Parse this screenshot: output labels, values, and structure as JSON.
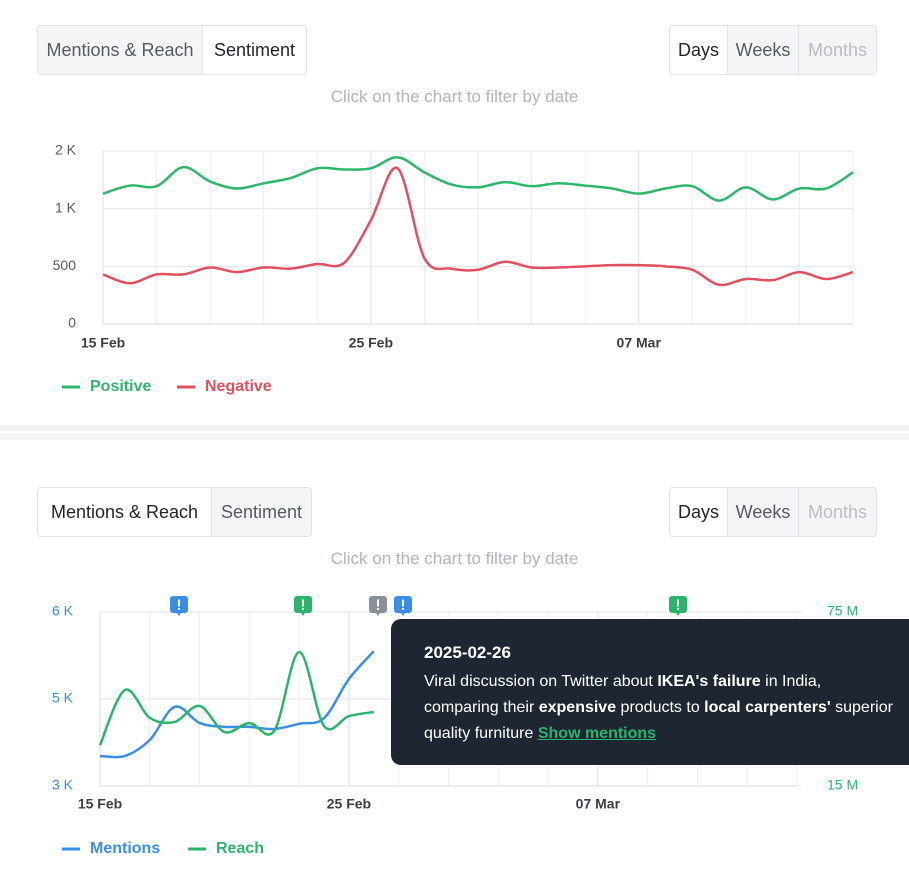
{
  "panels": [
    {
      "tabs": [
        "Mentions & Reach",
        "Sentiment"
      ],
      "active_tab": 1,
      "ranges": [
        "Days",
        "Weeks",
        "Months"
      ],
      "active_range": 0,
      "disabled_range": 2,
      "hint": "Click on the chart to filter by date"
    },
    {
      "tabs": [
        "Mentions & Reach",
        "Sentiment"
      ],
      "active_tab": 0,
      "ranges": [
        "Days",
        "Weeks",
        "Months"
      ],
      "active_range": 0,
      "disabled_range": 2,
      "hint": "Click on the chart to filter by date"
    }
  ],
  "chart_data": [
    {
      "type": "line",
      "categories": [
        "15 Feb",
        null,
        null,
        null,
        null,
        null,
        null,
        null,
        null,
        null,
        "25 Feb",
        null,
        null,
        null,
        null,
        null,
        null,
        null,
        null,
        null,
        "07 Mar",
        null,
        null,
        null,
        null,
        null,
        null,
        null,
        null
      ],
      "ylim": [
        0,
        2000
      ],
      "yticks": [
        0,
        500,
        {
          "value": 1000,
          "label": "1 K"
        },
        {
          "value": 2000,
          "label": "2 K"
        }
      ],
      "grid": true,
      "legend": "bottom-left",
      "series": [
        {
          "name": "Positive",
          "color": "#2db768",
          "values": [
            1260,
            1400,
            1390,
            1720,
            1470,
            1350,
            1440,
            1530,
            1700,
            1680,
            1700,
            1890,
            1630,
            1420,
            1370,
            1460,
            1390,
            1440,
            1400,
            1350,
            1260,
            1350,
            1390,
            1140,
            1370,
            1160,
            1350,
            1350,
            1630
          ]
        },
        {
          "name": "Negative",
          "color": "#e0505e",
          "values": [
            430,
            353,
            430,
            430,
            490,
            450,
            490,
            480,
            520,
            530,
            900,
            1700,
            570,
            480,
            470,
            540,
            490,
            490,
            500,
            510,
            510,
            500,
            470,
            340,
            390,
            380,
            450,
            390,
            450
          ]
        }
      ]
    },
    {
      "type": "line",
      "categories": [
        "15 Feb",
        null,
        null,
        null,
        null,
        null,
        null,
        null,
        null,
        null,
        "25 Feb",
        null,
        null,
        null,
        null,
        null,
        null,
        null,
        null,
        null,
        "07 Mar",
        null,
        null,
        null,
        null,
        null,
        null,
        null,
        null
      ],
      "ylim": [
        3000,
        6000
      ],
      "yticks": [
        {
          "value": 3000,
          "label": "3 K"
        },
        {
          "value": 5000,
          "label": "5 K"
        },
        {
          "value": 6000,
          "label": "6 K"
        }
      ],
      "y2lim": [
        15000000,
        75000000
      ],
      "y2ticks": [
        {
          "value": 15000000,
          "label": "15 M"
        },
        {
          "value": 75000000,
          "label": "75 M"
        }
      ],
      "grid": true,
      "legend": "bottom-left",
      "series": [
        {
          "name": "Mentions",
          "color": "#3a8ee6",
          "values": [
            3690,
            3690,
            4060,
            4820,
            4450,
            4360,
            4360,
            4310,
            4430,
            4560,
            5230,
            5550,
            null,
            null,
            null,
            null,
            null,
            null,
            null,
            null,
            null,
            null,
            null,
            null,
            null,
            null,
            null,
            null,
            null
          ]
        },
        {
          "name": "Reach",
          "color": "#2bb56a",
          "axis": "y2",
          "values": [
            29100000,
            48100000,
            38500000,
            37100000,
            42600000,
            33600000,
            36700000,
            34000000,
            61200000,
            35700000,
            39100000,
            40500000,
            null,
            null,
            null,
            null,
            null,
            null,
            null,
            null,
            null,
            null,
            null,
            null,
            null,
            null,
            null,
            null,
            null
          ]
        }
      ]
    }
  ],
  "tooltip": {
    "date": "2025-02-26",
    "runs": [
      {
        "text": "Viral discussion on Twitter about ",
        "bold": false
      },
      {
        "text": "IKEA's failure",
        "bold": true
      },
      {
        "text": " in India, comparing their ",
        "bold": false
      },
      {
        "text": "expensive",
        "bold": true
      },
      {
        "text": " products to ",
        "bold": false
      },
      {
        "text": "local carpenters'",
        "bold": true
      },
      {
        "text": " superior quality furniture ",
        "bold": false
      }
    ],
    "link": "Show mentions"
  }
}
